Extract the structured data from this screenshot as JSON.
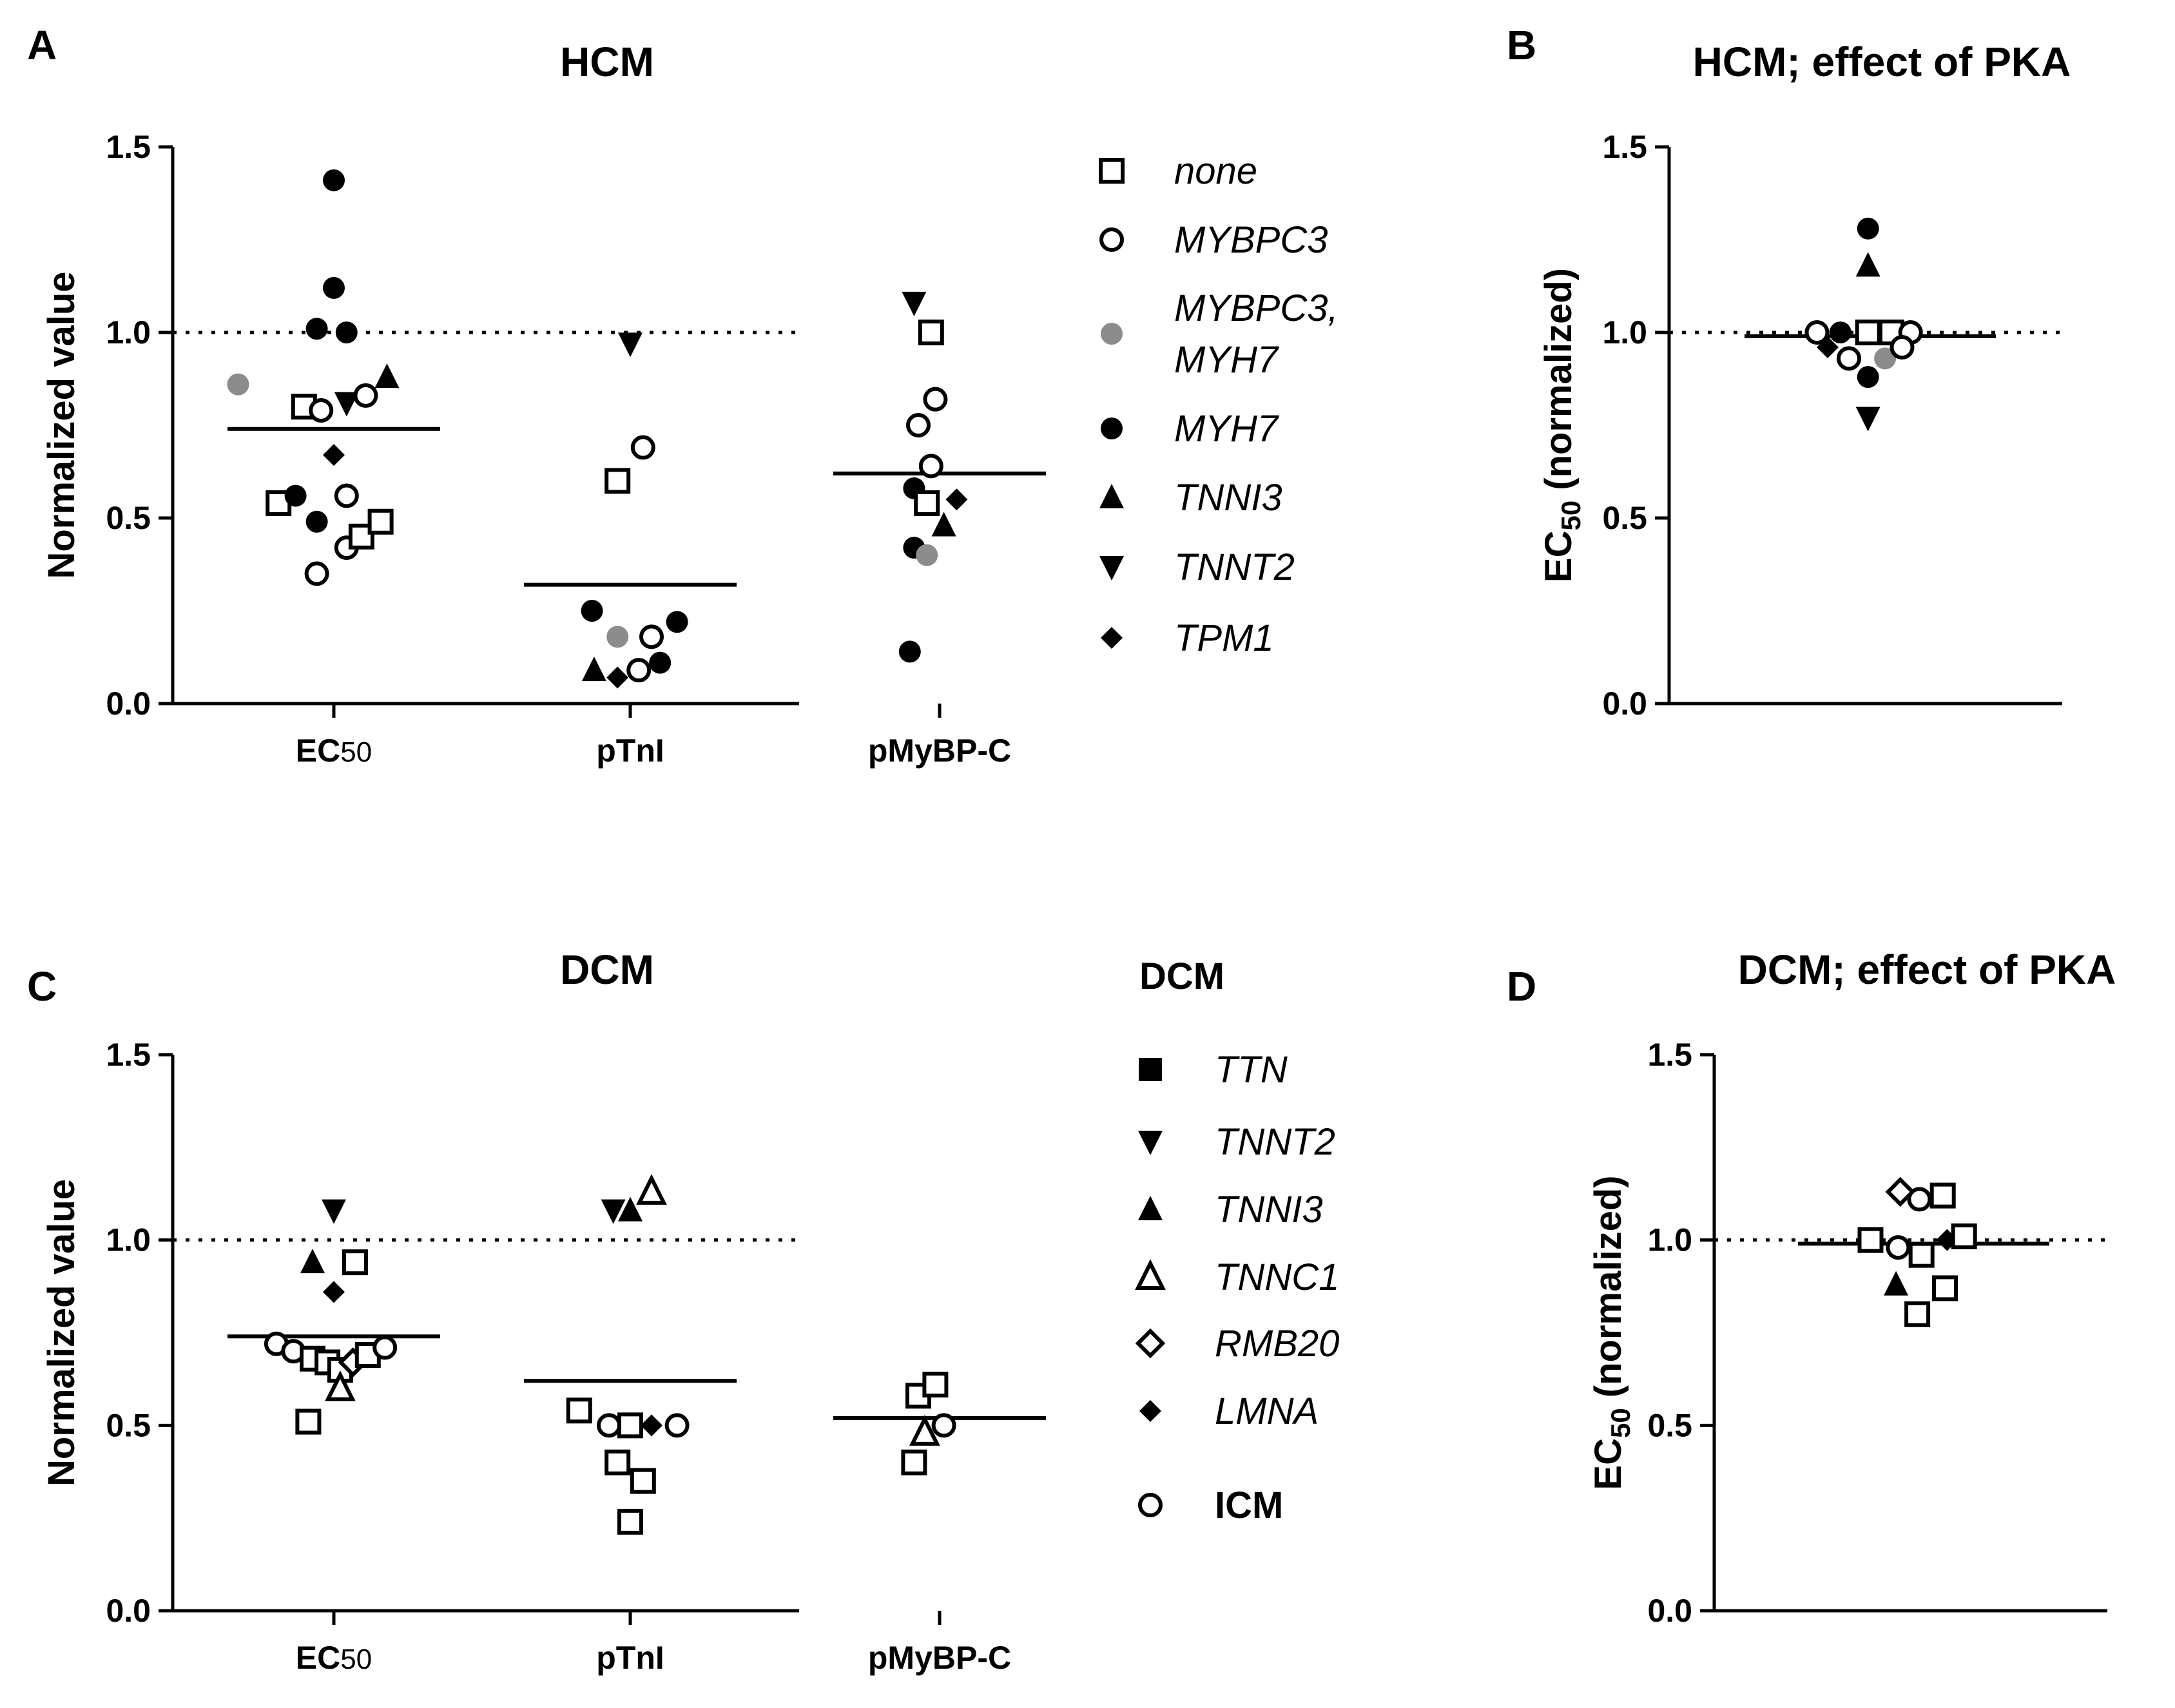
{
  "chart_data": [
    {
      "id": "A",
      "panel_label": "A",
      "type": "scatter",
      "title": "HCM",
      "ylabel": "Normalized value",
      "ylim": [
        0,
        1.5
      ],
      "yticks": [
        "0.0",
        "0.5",
        "1.0",
        "1.5"
      ],
      "categories": [
        "EC50",
        "pTnI",
        "pMyBP-C"
      ],
      "reference_line": 1.0,
      "means": [
        0.74,
        0.32,
        0.62
      ],
      "points": [
        {
          "cat": 0,
          "off": -0.45,
          "y": 0.86,
          "marker": "circle",
          "color": "#8c8c8c"
        },
        {
          "cat": 0,
          "off": -0.26,
          "y": 0.54,
          "marker": "square-open"
        },
        {
          "cat": 0,
          "off": -0.14,
          "y": 0.8,
          "marker": "square-open"
        },
        {
          "cat": 0,
          "off": -0.18,
          "y": 0.56,
          "marker": "circle"
        },
        {
          "cat": 0,
          "off": -0.08,
          "y": 0.49,
          "marker": "circle"
        },
        {
          "cat": 0,
          "off": -0.08,
          "y": 0.35,
          "marker": "circle-open"
        },
        {
          "cat": 0,
          "off": -0.08,
          "y": 1.01,
          "marker": "circle"
        },
        {
          "cat": 0,
          "off": 0.0,
          "y": 1.41,
          "marker": "circle"
        },
        {
          "cat": 0,
          "off": 0.0,
          "y": 1.12,
          "marker": "circle"
        },
        {
          "cat": 0,
          "off": 0.0,
          "y": 0.67,
          "marker": "diamond"
        },
        {
          "cat": 0,
          "off": -0.06,
          "y": 0.79,
          "marker": "circle-open"
        },
        {
          "cat": 0,
          "off": 0.06,
          "y": 1.0,
          "marker": "circle"
        },
        {
          "cat": 0,
          "off": 0.06,
          "y": 0.81,
          "marker": "tri-down"
        },
        {
          "cat": 0,
          "off": 0.06,
          "y": 0.56,
          "marker": "circle-open"
        },
        {
          "cat": 0,
          "off": 0.06,
          "y": 0.42,
          "marker": "circle-open"
        },
        {
          "cat": 0,
          "off": 0.13,
          "y": 0.45,
          "marker": "square-open"
        },
        {
          "cat": 0,
          "off": 0.15,
          "y": 0.83,
          "marker": "circle-open"
        },
        {
          "cat": 0,
          "off": 0.22,
          "y": 0.49,
          "marker": "square-open"
        },
        {
          "cat": 0,
          "off": 0.25,
          "y": 0.88,
          "marker": "tri-up"
        },
        {
          "cat": 1,
          "off": 0.0,
          "y": 0.97,
          "marker": "tri-down"
        },
        {
          "cat": 1,
          "off": -0.06,
          "y": 0.6,
          "marker": "square-open"
        },
        {
          "cat": 1,
          "off": 0.06,
          "y": 0.69,
          "marker": "circle-open"
        },
        {
          "cat": 1,
          "off": -0.18,
          "y": 0.25,
          "marker": "circle"
        },
        {
          "cat": 1,
          "off": -0.06,
          "y": 0.18,
          "marker": "circle",
          "color": "#8c8c8c"
        },
        {
          "cat": 1,
          "off": 0.1,
          "y": 0.18,
          "marker": "circle-open"
        },
        {
          "cat": 1,
          "off": 0.22,
          "y": 0.22,
          "marker": "circle"
        },
        {
          "cat": 1,
          "off": -0.17,
          "y": 0.09,
          "marker": "tri-up"
        },
        {
          "cat": 1,
          "off": -0.06,
          "y": 0.07,
          "marker": "diamond"
        },
        {
          "cat": 1,
          "off": 0.04,
          "y": 0.09,
          "marker": "circle-open"
        },
        {
          "cat": 1,
          "off": 0.14,
          "y": 0.11,
          "marker": "circle"
        },
        {
          "cat": 2,
          "off": -0.12,
          "y": 1.08,
          "marker": "tri-down"
        },
        {
          "cat": 2,
          "off": -0.04,
          "y": 1.0,
          "marker": "square-open"
        },
        {
          "cat": 2,
          "off": -0.1,
          "y": 0.75,
          "marker": "circle-open"
        },
        {
          "cat": 2,
          "off": -0.02,
          "y": 0.82,
          "marker": "circle-open"
        },
        {
          "cat": 2,
          "off": -0.04,
          "y": 0.64,
          "marker": "circle-open"
        },
        {
          "cat": 2,
          "off": -0.12,
          "y": 0.58,
          "marker": "circle"
        },
        {
          "cat": 2,
          "off": -0.06,
          "y": 0.54,
          "marker": "square-open"
        },
        {
          "cat": 2,
          "off": 0.02,
          "y": 0.48,
          "marker": "tri-up"
        },
        {
          "cat": 2,
          "off": 0.08,
          "y": 0.55,
          "marker": "diamond"
        },
        {
          "cat": 2,
          "off": -0.12,
          "y": 0.42,
          "marker": "circle"
        },
        {
          "cat": 2,
          "off": -0.06,
          "y": 0.4,
          "marker": "circle",
          "color": "#8c8c8c"
        },
        {
          "cat": 2,
          "off": -0.14,
          "y": 0.14,
          "marker": "circle"
        }
      ]
    },
    {
      "id": "B",
      "panel_label": "B",
      "type": "scatter",
      "title": "HCM; effect of PKA",
      "ylabel_main": "EC",
      "ylabel_sub": "50",
      "ylabel_rest": " (normalized)",
      "ylim": [
        0,
        1.5
      ],
      "yticks": [
        "0.0",
        "0.5",
        "1.0",
        "1.5"
      ],
      "reference_line": 1.0,
      "means": [
        0.99
      ],
      "points": [
        {
          "off": -0.25,
          "y": 1.0,
          "marker": "circle-open"
        },
        {
          "off": -0.14,
          "y": 1.0,
          "marker": "circle"
        },
        {
          "off": -0.01,
          "y": 1.28,
          "marker": "circle"
        },
        {
          "off": -0.01,
          "y": 1.18,
          "marker": "tri-up"
        },
        {
          "off": -0.01,
          "y": 1.0,
          "marker": "square-open"
        },
        {
          "off": -0.01,
          "y": 0.88,
          "marker": "circle"
        },
        {
          "off": -0.01,
          "y": 0.77,
          "marker": "tri-down"
        },
        {
          "off": -0.2,
          "y": 0.96,
          "marker": "diamond"
        },
        {
          "off": -0.1,
          "y": 0.93,
          "marker": "circle-open"
        },
        {
          "off": 0.1,
          "y": 1.0,
          "marker": "square-open"
        },
        {
          "off": 0.19,
          "y": 1.0,
          "marker": "circle-open"
        },
        {
          "off": 0.07,
          "y": 0.93,
          "marker": "circle",
          "color": "#8c8c8c"
        },
        {
          "off": 0.15,
          "y": 0.96,
          "marker": "circle-open"
        }
      ]
    },
    {
      "id": "C",
      "panel_label": "C",
      "type": "scatter",
      "title": "DCM",
      "ylabel": "Normalized value",
      "ylim": [
        0,
        1.5
      ],
      "yticks": [
        "0.0",
        "0.5",
        "1.0",
        "1.5"
      ],
      "categories": [
        "EC50",
        "pTnI",
        "pMyBP-C"
      ],
      "reference_line": 1.0,
      "means": [
        0.74,
        0.62,
        0.52
      ],
      "points": [
        {
          "cat": 0,
          "off": 0.0,
          "y": 1.08,
          "marker": "tri-down"
        },
        {
          "cat": 0,
          "off": -0.1,
          "y": 0.94,
          "marker": "tri-up"
        },
        {
          "cat": 0,
          "off": 0.1,
          "y": 0.94,
          "marker": "square-open"
        },
        {
          "cat": 0,
          "off": 0.0,
          "y": 0.86,
          "marker": "diamond"
        },
        {
          "cat": 0,
          "off": -0.27,
          "y": 0.72,
          "marker": "circle-open"
        },
        {
          "cat": 0,
          "off": -0.19,
          "y": 0.7,
          "marker": "circle-open"
        },
        {
          "cat": 0,
          "off": -0.1,
          "y": 0.68,
          "marker": "square-open"
        },
        {
          "cat": 0,
          "off": -0.03,
          "y": 0.67,
          "marker": "square-open"
        },
        {
          "cat": 0,
          "off": 0.03,
          "y": 0.65,
          "marker": "square-open"
        },
        {
          "cat": 0,
          "off": 0.09,
          "y": 0.67,
          "marker": "diamond-open"
        },
        {
          "cat": 0,
          "off": 0.16,
          "y": 0.69,
          "marker": "square-open"
        },
        {
          "cat": 0,
          "off": 0.24,
          "y": 0.71,
          "marker": "circle-open"
        },
        {
          "cat": 0,
          "off": -0.12,
          "y": 0.51,
          "marker": "square-open"
        },
        {
          "cat": 0,
          "off": 0.03,
          "y": 0.6,
          "marker": "tri-up-open"
        },
        {
          "cat": 1,
          "off": -0.08,
          "y": 1.08,
          "marker": "tri-down"
        },
        {
          "cat": 1,
          "off": 0.0,
          "y": 1.08,
          "marker": "tri-up"
        },
        {
          "cat": 1,
          "off": 0.1,
          "y": 1.13,
          "marker": "tri-up-open"
        },
        {
          "cat": 1,
          "off": -0.24,
          "y": 0.54,
          "marker": "square-open"
        },
        {
          "cat": 1,
          "off": -0.1,
          "y": 0.5,
          "marker": "circle-open"
        },
        {
          "cat": 1,
          "off": 0.0,
          "y": 0.5,
          "marker": "square-open"
        },
        {
          "cat": 1,
          "off": 0.1,
          "y": 0.5,
          "marker": "diamond"
        },
        {
          "cat": 1,
          "off": 0.22,
          "y": 0.5,
          "marker": "circle-open"
        },
        {
          "cat": 1,
          "off": -0.06,
          "y": 0.4,
          "marker": "square-open"
        },
        {
          "cat": 1,
          "off": 0.06,
          "y": 0.35,
          "marker": "square-open"
        },
        {
          "cat": 1,
          "off": 0.0,
          "y": 0.24,
          "marker": "square-open"
        },
        {
          "cat": 2,
          "off": -0.1,
          "y": 0.58,
          "marker": "square-open"
        },
        {
          "cat": 2,
          "off": -0.02,
          "y": 0.61,
          "marker": "square-open"
        },
        {
          "cat": 2,
          "off": 0.02,
          "y": 0.5,
          "marker": "circle-open"
        },
        {
          "cat": 2,
          "off": -0.07,
          "y": 0.48,
          "marker": "tri-up-open"
        },
        {
          "cat": 2,
          "off": -0.12,
          "y": 0.4,
          "marker": "square-open"
        }
      ]
    },
    {
      "id": "D",
      "panel_label": "D",
      "type": "scatter",
      "title": "DCM; effect of PKA",
      "ylabel_main": "EC",
      "ylabel_sub": "50",
      "ylabel_rest": " (normalized)",
      "ylim": [
        0,
        1.5
      ],
      "yticks": [
        "0.0",
        "0.5",
        "1.0",
        "1.5"
      ],
      "reference_line": 1.0,
      "means": [
        0.99
      ],
      "points": [
        {
          "off": -0.25,
          "y": 1.0,
          "marker": "square-open"
        },
        {
          "off": -0.12,
          "y": 0.98,
          "marker": "circle-open"
        },
        {
          "off": -0.11,
          "y": 1.13,
          "marker": "diamond-open"
        },
        {
          "off": -0.02,
          "y": 1.11,
          "marker": "circle-open"
        },
        {
          "off": 0.09,
          "y": 1.12,
          "marker": "square-open"
        },
        {
          "off": -0.01,
          "y": 0.96,
          "marker": "square-open"
        },
        {
          "off": 0.11,
          "y": 1.0,
          "marker": "diamond"
        },
        {
          "off": 0.19,
          "y": 1.01,
          "marker": "square-open"
        },
        {
          "off": -0.13,
          "y": 0.88,
          "marker": "tri-up"
        },
        {
          "off": 0.1,
          "y": 0.87,
          "marker": "square-open"
        },
        {
          "off": -0.03,
          "y": 0.8,
          "marker": "square-open"
        }
      ]
    }
  ],
  "legend_hcm": [
    {
      "label": "none",
      "marker": "square-open"
    },
    {
      "label": "MYBPC3",
      "marker": "circle-open"
    },
    {
      "label": "MYBPC3,",
      "label2": "MYH7",
      "marker": "circle",
      "color": "#8c8c8c"
    },
    {
      "label": "MYH7",
      "marker": "circle"
    },
    {
      "label": "TNNI3",
      "marker": "tri-up"
    },
    {
      "label": "TNNT2",
      "marker": "tri-down"
    },
    {
      "label": "TPM1",
      "marker": "diamond"
    }
  ],
  "legend_dcm": {
    "heading": "DCM",
    "items": [
      {
        "label": "TTN",
        "marker": "square"
      },
      {
        "label": "TNNT2",
        "marker": "tri-down"
      },
      {
        "label": "TNNI3",
        "marker": "tri-up"
      },
      {
        "label": "TNNC1",
        "marker": "tri-up-open"
      },
      {
        "label": "RMB20",
        "marker": "diamond-open"
      },
      {
        "label": "LMNA",
        "marker": "diamond"
      }
    ],
    "icm": {
      "label": "ICM",
      "marker": "circle-open"
    }
  }
}
